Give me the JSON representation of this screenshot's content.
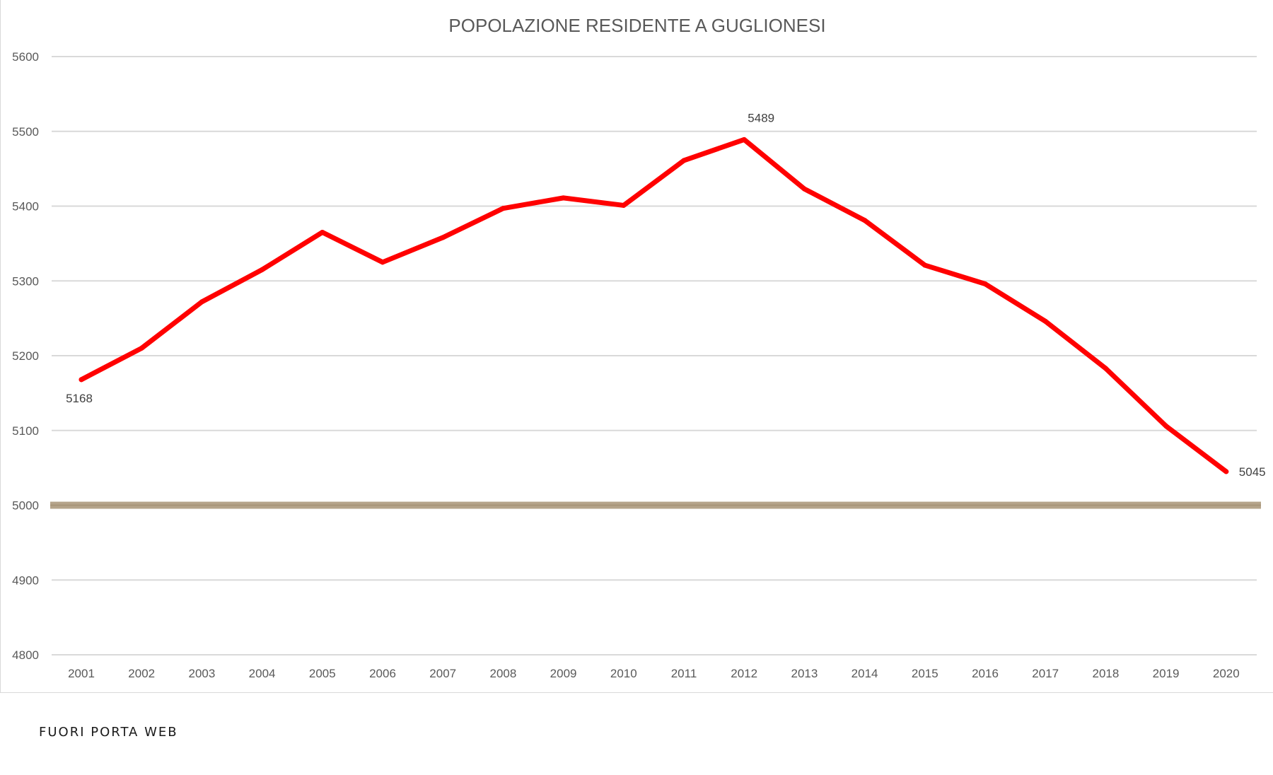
{
  "chart_data": {
    "type": "line",
    "title": "POPOLAZIONE RESIDENTE A GUGLIONESI",
    "xlabel": "",
    "ylabel": "",
    "categories": [
      "2001",
      "2002",
      "2003",
      "2004",
      "2005",
      "2006",
      "2007",
      "2008",
      "2009",
      "2010",
      "2011",
      "2012",
      "2013",
      "2014",
      "2015",
      "2016",
      "2017",
      "2018",
      "2019",
      "2020"
    ],
    "series": [
      {
        "values": [
          5168,
          5210,
          5272,
          5315,
          5365,
          5325,
          5358,
          5397,
          5411,
          5401,
          5461,
          5489,
          5423,
          5381,
          5321,
          5296,
          5246,
          5183,
          5106,
          5045
        ],
        "color": "#ff0000"
      }
    ],
    "data_labels": [
      {
        "category": "2001",
        "value": 5168,
        "text": "5168",
        "placement": "below"
      },
      {
        "category": "2012",
        "value": 5489,
        "text": "5489",
        "placement": "above"
      },
      {
        "category": "2020",
        "value": 5045,
        "text": "5045",
        "placement": "right"
      }
    ],
    "reference_line": {
      "value": 5000,
      "color": "#b5a48a"
    },
    "ylim": [
      4800,
      5600
    ],
    "yticks": [
      4800,
      4900,
      5000,
      5100,
      5200,
      5300,
      5400,
      5500,
      5600
    ],
    "grid": true,
    "legend": "none",
    "gridline_color": "#d9d9d9"
  },
  "watermark": "FUORI PORTA WEB"
}
